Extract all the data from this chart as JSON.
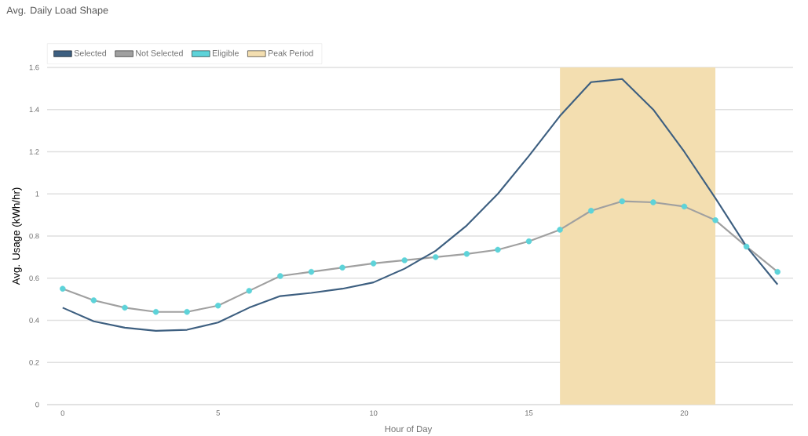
{
  "chart_data": {
    "type": "line",
    "title": "Avg. Daily Load Shape",
    "xlabel": "Hour of Day",
    "ylabel": "Avg. Usage (kWh/hr)",
    "x": [
      0,
      1,
      2,
      3,
      4,
      5,
      6,
      7,
      8,
      9,
      10,
      11,
      12,
      13,
      14,
      15,
      16,
      17,
      18,
      19,
      20,
      21,
      22,
      23
    ],
    "series": [
      {
        "name": "Selected",
        "color": "#3d5f80",
        "marker": "none",
        "values": [
          0.46,
          0.395,
          0.365,
          0.35,
          0.355,
          0.39,
          0.46,
          0.515,
          0.53,
          0.55,
          0.58,
          0.645,
          0.73,
          0.85,
          1.0,
          1.18,
          1.37,
          1.53,
          1.545,
          1.4,
          1.2,
          0.98,
          0.75,
          0.57
        ]
      },
      {
        "name": "Not Selected",
        "color": "#a0a0a0",
        "marker": "none",
        "values": [
          0.55,
          0.495,
          0.46,
          0.44,
          0.44,
          0.47,
          0.54,
          0.61,
          0.63,
          0.65,
          0.67,
          0.685,
          0.7,
          0.715,
          0.735,
          0.775,
          0.83,
          0.92,
          0.965,
          0.96,
          0.94,
          0.875,
          0.75,
          0.63
        ]
      },
      {
        "name": "Eligible",
        "color": "#5dd3d9",
        "type": "scatter",
        "marker": "circle",
        "values": [
          0.55,
          0.495,
          0.46,
          0.44,
          0.44,
          0.47,
          0.54,
          0.61,
          0.63,
          0.65,
          0.67,
          0.685,
          0.7,
          0.715,
          0.735,
          0.775,
          0.83,
          0.92,
          0.965,
          0.96,
          0.94,
          0.875,
          0.75,
          0.63
        ]
      }
    ],
    "bands": [
      {
        "axis": "x",
        "from": 16,
        "to": 21,
        "label": "Peak Period",
        "color": "#f3deb0"
      }
    ],
    "xlim": [
      -0.5,
      23.5
    ],
    "ylim": [
      0,
      1.6
    ],
    "xticks": [
      0,
      5,
      10,
      15,
      20
    ],
    "yticks": [
      0,
      0.2,
      0.4,
      0.6,
      0.8,
      1,
      1.2,
      1.4,
      1.6
    ],
    "grid": "y",
    "legend": "top left"
  }
}
